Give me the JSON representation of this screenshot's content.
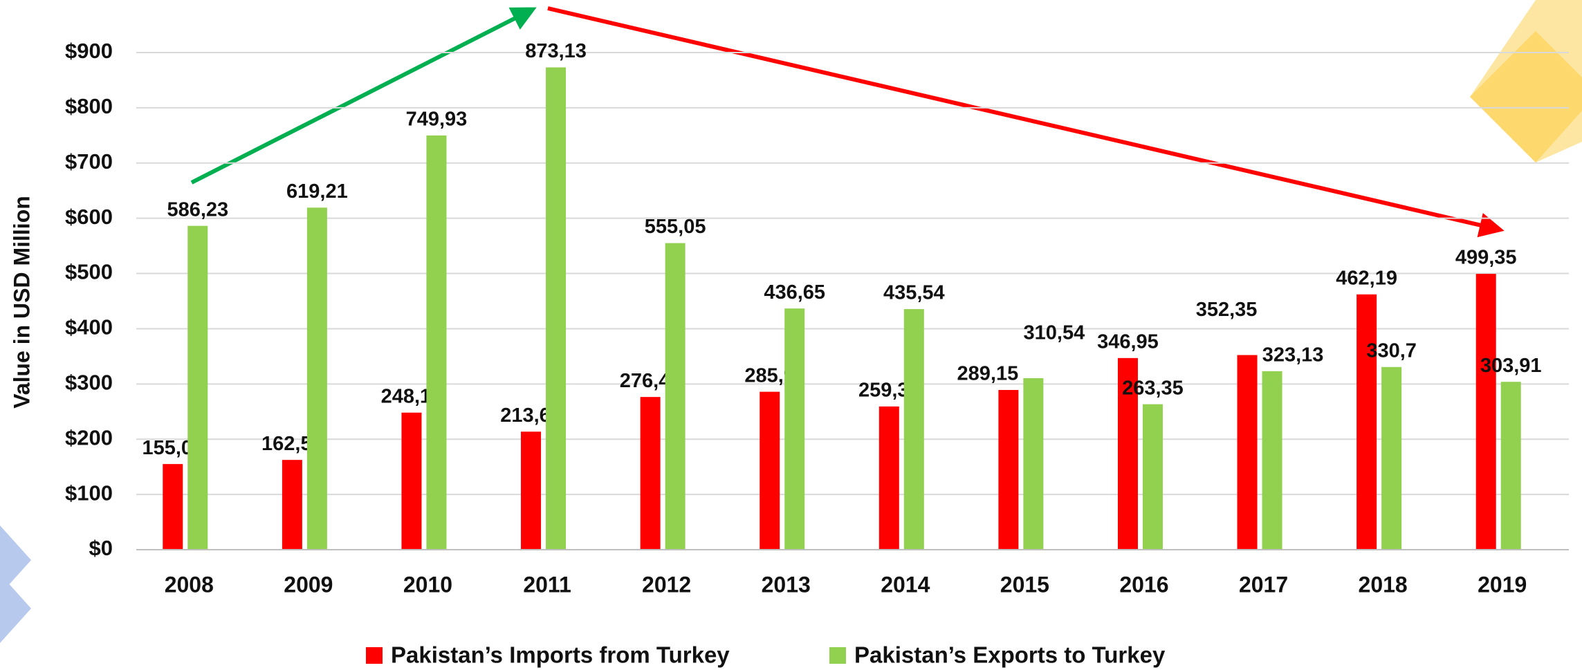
{
  "chart_data": {
    "type": "bar",
    "y_label": "Value in USD Million",
    "categories": [
      "2008",
      "2009",
      "2010",
      "2011",
      "2012",
      "2013",
      "2014",
      "2015",
      "2016",
      "2017",
      "2018",
      "2019"
    ],
    "series": [
      {
        "name": "Pakistan’s Imports from Turkey",
        "color": "#ff0000",
        "values": [
          155.06,
          162.51,
          248.14,
          213.68,
          276.46,
          285.9,
          259.31,
          289.15,
          346.95,
          352.35,
          462.19,
          499.35
        ],
        "value_labels": [
          "155,06",
          "162,51",
          "248,14",
          "213,68",
          "276,46",
          "285,9",
          "259,31",
          "289,15",
          "346,95",
          "352,35",
          "462,19",
          "499,35"
        ]
      },
      {
        "name": "Pakistan’s Exports to Turkey",
        "color": "#92d050",
        "values": [
          586.23,
          619.21,
          749.93,
          873.13,
          555.05,
          436.65,
          435.54,
          310.54,
          263.35,
          323.13,
          330.7,
          303.91
        ],
        "value_labels": [
          "586,23",
          "619,21",
          "749,93",
          "873,13",
          "555,05",
          "436,65",
          "435,54",
          "310,54",
          "263,35",
          "323,13",
          "330,7",
          "303,91"
        ]
      }
    ],
    "ylim": [
      0,
      900
    ],
    "yticks": [
      {
        "value": 0,
        "label": "$0"
      },
      {
        "value": 100,
        "label": "$100"
      },
      {
        "value": 200,
        "label": "$200"
      },
      {
        "value": 300,
        "label": "$300"
      },
      {
        "value": 400,
        "label": "$400"
      },
      {
        "value": 500,
        "label": "$500"
      },
      {
        "value": 600,
        "label": "$600"
      },
      {
        "value": 700,
        "label": "$700"
      },
      {
        "value": 800,
        "label": "$800"
      },
      {
        "value": 900,
        "label": "$900"
      }
    ],
    "grid": true,
    "legend": "bottom"
  }
}
